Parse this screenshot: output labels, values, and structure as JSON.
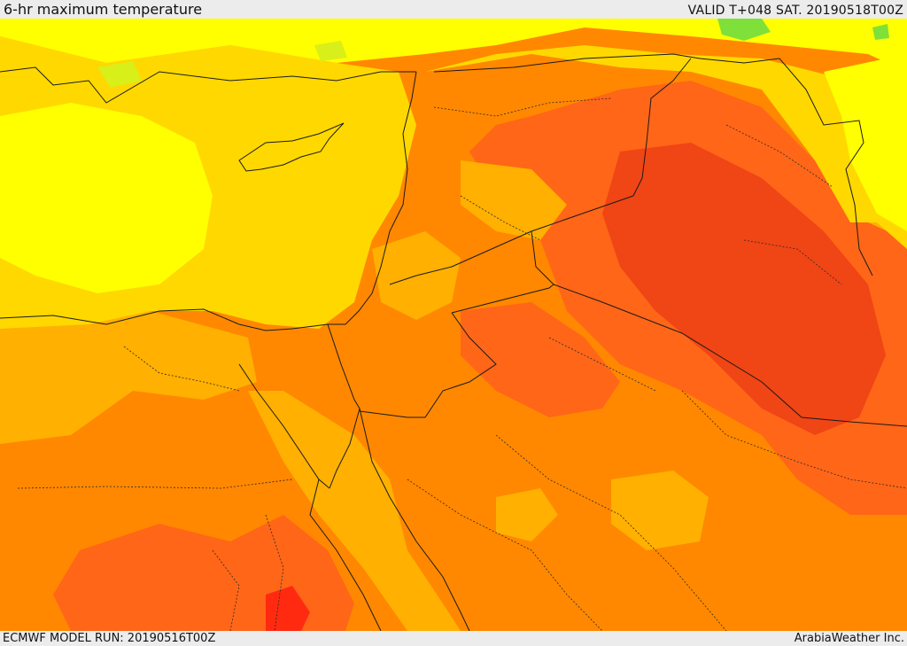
{
  "header": {
    "title": "6-hr maximum temperature",
    "valid_label": "VALID T+048 SAT. 20190518T00Z"
  },
  "footer": {
    "model_run": "ECMWF MODEL RUN: 20190516T00Z",
    "credit": "ArabiaWeather Inc."
  },
  "map": {
    "field": "6-hr maximum temperature",
    "palette": {
      "light_green": "#7fe03a",
      "yellow_green": "#d8ef1a",
      "yellow": "#ffff00",
      "gold": "#ffd800",
      "amber": "#ffb000",
      "orange": "#ff8800",
      "dark_orange": "#ff6618",
      "red_orange": "#f04515",
      "red": "#ff2a10"
    },
    "line_colors": {
      "country_border": "#1a1a1a",
      "province_border": "#2b2b2b"
    }
  }
}
